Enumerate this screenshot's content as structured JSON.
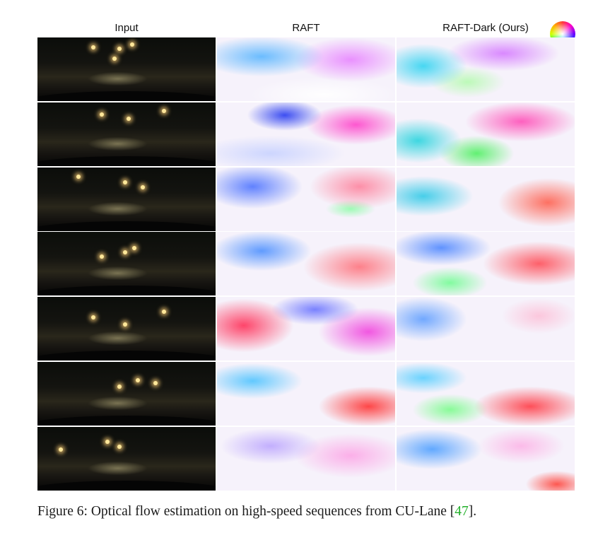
{
  "headers": [
    "Input",
    "RAFT",
    "RAFT-Dark (Ours)"
  ],
  "caption": {
    "label": "Figure 6:",
    "text_before": " Optical flow estimation on high-speed sequences from CU-Lane [",
    "ref": "47",
    "text_after": "]."
  },
  "rows": 7
}
